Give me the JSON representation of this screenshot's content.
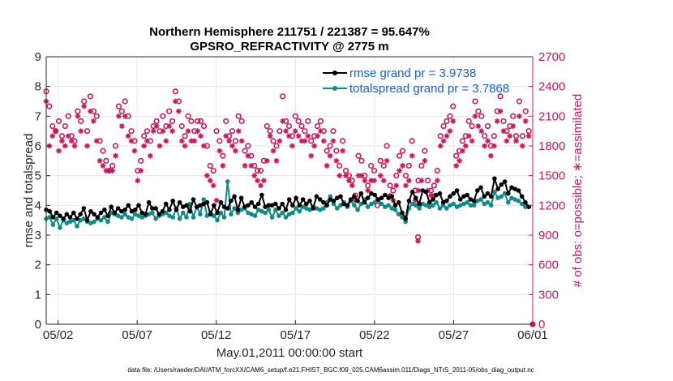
{
  "chart_data": {
    "type": "line",
    "title_line1": "Northern Hemisphere 211751 / 221387 = 95.647%",
    "title_line2": "GPSRO_REFRACTIVITY @ 2775 m",
    "ylabel_left": "rmse and totalspread",
    "ylabel_right": "# of obs: o=possible; ∗=assimilated",
    "xlabel": "May.01,2011 00:00:00 start",
    "footnote": "data file: /Users/raeder/DAI/ATM_forcXX/CAM6_setup/f.e21.FHIST_BGC.f09_025.CAM6assim.011/Diags_NTrS_2011-05/obs_diag_output.nc",
    "x_tick_labels": [
      "05/02",
      "05/07",
      "05/12",
      "05/17",
      "05/22",
      "05/27",
      "06/01"
    ],
    "x_tick_days": [
      1,
      6,
      11,
      16,
      21,
      26,
      31
    ],
    "xlim_days": [
      0.25,
      31.0
    ],
    "ylim_left": [
      0,
      9
    ],
    "yticks_left": [
      "0",
      "1",
      "2",
      "3",
      "4",
      "5",
      "6",
      "7",
      "8",
      "9"
    ],
    "ylim_right": [
      0,
      2700
    ],
    "yticks_right": [
      "0",
      "300",
      "600",
      "900",
      "1200",
      "1500",
      "1800",
      "2100",
      "2400",
      "2700"
    ],
    "grid": true,
    "legend_position": "top-right",
    "colors": {
      "rmse": "#000000",
      "spread": "#108a87",
      "obs": "#c8175c"
    },
    "series": [
      {
        "name": "rmse grand pr = 3.9738",
        "axis": "left",
        "values": [
          3.85,
          3.8,
          3.6,
          3.75,
          3.65,
          3.55,
          3.7,
          3.6,
          3.75,
          3.55,
          3.7,
          3.9,
          3.5,
          3.8,
          3.7,
          3.6,
          3.75,
          3.85,
          3.65,
          3.95,
          3.75,
          3.9,
          3.8,
          3.85,
          4.0,
          3.8,
          3.85,
          4.0,
          3.75,
          3.7,
          4.1,
          3.9,
          3.9,
          3.7,
          3.8,
          4.05,
          3.85,
          4.15,
          3.85,
          4.1,
          3.95,
          4.0,
          3.8,
          4.2,
          3.95,
          4.0,
          4.05,
          4.1,
          3.7,
          4.0,
          3.75,
          4.1,
          3.95,
          3.9,
          4.15,
          4.3,
          3.85,
          4.25,
          3.95,
          4.0,
          4.1,
          3.95,
          4.05,
          4.35,
          3.95,
          4.0,
          4.0,
          4.05,
          3.9,
          4.05,
          3.85,
          4.2,
          4.0,
          4.25,
          4.0,
          4.2,
          4.05,
          4.15,
          3.9,
          4.3,
          4.2,
          4.1,
          4.0,
          4.2,
          4.15,
          4.25,
          4.3,
          4.05,
          4.0,
          4.2,
          4.3,
          4.15,
          4.4,
          4.1,
          4.25,
          4.4,
          4.35,
          4.2,
          4.25,
          4.35,
          4.25,
          4.3,
          4.0,
          4.1,
          3.75,
          3.55,
          4.15,
          4.45,
          4.25,
          4.05,
          4.5,
          4.45,
          4.1,
          4.2,
          4.35,
          4.4,
          4.1,
          4.15,
          4.3,
          4.4,
          4.5,
          4.2,
          4.3,
          4.35,
          4.2,
          4.15,
          4.5,
          4.6,
          4.3,
          4.4,
          4.3,
          4.9,
          4.55,
          4.7,
          4.8,
          4.4,
          4.6,
          4.55,
          4.5,
          4.3,
          4.1,
          3.95
        ]
      },
      {
        "name": "totalspread grand pr = 3.7868",
        "axis": "left",
        "values": [
          3.55,
          3.6,
          3.35,
          3.55,
          3.25,
          3.5,
          3.4,
          3.45,
          3.5,
          3.3,
          3.5,
          3.55,
          3.45,
          3.4,
          3.45,
          3.55,
          3.5,
          3.6,
          3.45,
          3.75,
          3.7,
          3.65,
          3.6,
          3.7,
          3.6,
          3.55,
          3.7,
          3.65,
          3.6,
          3.65,
          3.7,
          3.75,
          3.55,
          3.65,
          3.7,
          3.75,
          3.65,
          3.6,
          3.9,
          3.55,
          3.75,
          3.6,
          4.05,
          3.6,
          3.95,
          3.7,
          4.2,
          3.65,
          3.75,
          3.65,
          3.5,
          3.75,
          3.6,
          4.8,
          3.7,
          3.9,
          3.75,
          3.85,
          3.9,
          3.75,
          3.7,
          3.65,
          3.85,
          3.8,
          3.75,
          3.85,
          3.6,
          3.85,
          3.65,
          3.75,
          3.6,
          3.7,
          3.75,
          3.9,
          3.8,
          3.95,
          3.9,
          3.85,
          3.95,
          3.9,
          3.85,
          3.9,
          4.1,
          4.3,
          4.05,
          3.9,
          4.0,
          4.1,
          3.95,
          4.15,
          4.0,
          3.85,
          4.05,
          4.2,
          3.95,
          4.05,
          4.1,
          4.2,
          4.05,
          3.95,
          4.0,
          3.9,
          3.85,
          3.7,
          3.6,
          3.45,
          3.9,
          4.05,
          4.0,
          3.9,
          4.05,
          4.0,
          3.95,
          4.0,
          4.1,
          3.9,
          4.0,
          3.9,
          4.0,
          4.05,
          3.95,
          4.0,
          4.05,
          4.1,
          4.0,
          4.0,
          4.15,
          4.2,
          4.05,
          4.1,
          4.0,
          4.45,
          4.25,
          4.3,
          4.4,
          4.1,
          4.25,
          4.2,
          4.15,
          4.05,
          3.95,
          3.95
        ]
      },
      {
        "name": "possible obs",
        "axis": "right",
        "values": [
          2350,
          2200,
          2000,
          1950,
          2050,
          1900,
          2000,
          2100,
          1900,
          1850,
          2150,
          2050,
          2250,
          1950,
          2300,
          2150,
          2100,
          1850,
          1750,
          1650,
          1550,
          1600,
          1800,
          2200,
          2150,
          2250,
          2100,
          1950,
          1850,
          1550,
          1650,
          1900,
          1950,
          1850,
          2000,
          2050,
          1950,
          2100,
          2000,
          2150,
          2050,
          2350,
          2250,
          2000,
          1900,
          2100,
          2050,
          1950,
          2050,
          2050,
          2000,
          1800,
          1600,
          1550,
          1950,
          1850,
          1700,
          2050,
          1900,
          1950,
          1850,
          2100,
          2050,
          1750,
          1800,
          1700,
          1600,
          1550,
          1550,
          1650,
          2000,
          1950,
          1850,
          1800,
          1950,
          2300,
          2050,
          2000,
          1900,
          2100,
          2050,
          2000,
          1950,
          2050,
          1850,
          1900,
          2000,
          2050,
          1950,
          1750,
          1800,
          1950,
          1750,
          1600,
          1850,
          1550,
          1500,
          1450,
          1300,
          1700,
          1650,
          1500,
          1400,
          1600,
          1550,
          1200,
          1650,
          1600,
          1800,
          1400,
          1350,
          1500,
          1700,
          1750,
          1500,
          1600,
          1850,
          1350,
          1450,
          1600,
          1750,
          1450,
          1350,
          1400,
          1550,
          1900,
          2000,
          2050,
          2100,
          2200,
          1700,
          1750,
          1850,
          1900,
          2050,
          2000,
          2250,
          2150,
          2100,
          1900,
          2000,
          1800,
          1900,
          2150,
          2300,
          2050,
          1950,
          2000,
          2100,
          1900,
          2250,
          1900,
          2150,
          1950
        ]
      },
      {
        "name": "assimilated obs",
        "axis": "right",
        "values": [
          2250,
          1800,
          1900,
          1950,
          1750,
          1850,
          1800,
          1900,
          1850,
          1800,
          2100,
          1950,
          2200,
          1800,
          2150,
          2050,
          1850,
          1650,
          1600,
          1550,
          1550,
          1550,
          1700,
          2100,
          2000,
          2100,
          1900,
          1850,
          1750,
          1450,
          1550,
          1800,
          1850,
          1700,
          1950,
          2000,
          1800,
          1950,
          1850,
          2000,
          1950,
          2250,
          2150,
          1850,
          1800,
          1950,
          1850,
          1850,
          1950,
          1900,
          1800,
          1500,
          1450,
          1400,
          1250,
          1750,
          1600,
          1900,
          1850,
          1800,
          1750,
          1950,
          1850,
          1600,
          1700,
          1600,
          1500,
          1450,
          1400,
          1450,
          1650,
          1900,
          1750,
          1650,
          1850,
          2050,
          1950,
          1900,
          1800,
          1950,
          1900,
          1850,
          1850,
          1900,
          1700,
          1800,
          1900,
          1950,
          1850,
          1600,
          1700,
          1850,
          1650,
          1500,
          1750,
          1500,
          1450,
          1400,
          1250,
          1500,
          1500,
          1450,
          1350,
          1450,
          1450,
          1250,
          1500,
          1450,
          1650,
          1300,
          1250,
          1400,
          1550,
          1600,
          1400,
          1450,
          1700,
          1250,
          1350,
          1450,
          1650,
          1350,
          1300,
          1300,
          1450,
          1800,
          1850,
          1900,
          1950,
          2050,
          1600,
          1650,
          1750,
          1800,
          1900,
          1850,
          2100,
          2000,
          1950,
          1800,
          1850,
          1700,
          1800,
          2050,
          2150,
          1950,
          1850,
          1900,
          2000,
          1850,
          2100,
          1800,
          2050,
          1900
        ]
      }
    ],
    "extra_marks": [
      {
        "name": "dip-possible",
        "axis": "right",
        "day": 23.75,
        "value": 880
      },
      {
        "name": "dip-assimilated",
        "axis": "right",
        "day": 23.75,
        "value": 840
      },
      {
        "name": "end-possible",
        "axis": "right",
        "day": 31.0,
        "value": 0
      },
      {
        "name": "end-assimilated",
        "axis": "right",
        "day": 31.0,
        "value": 0
      }
    ]
  }
}
